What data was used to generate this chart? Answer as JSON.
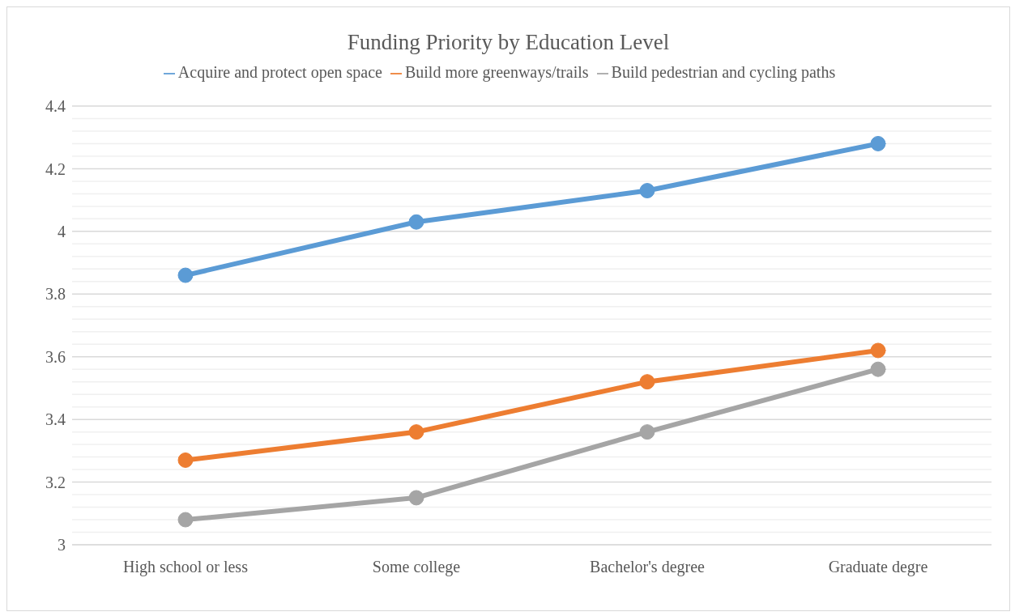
{
  "chart_data": {
    "type": "line",
    "title": "Funding Priority by Education Level",
    "categories": [
      "High school or less",
      "Some college",
      "Bachelor's degree",
      "Graduate degre"
    ],
    "series": [
      {
        "name": "Acquire and protect open space",
        "color": "#5b9bd5",
        "values": [
          3.86,
          4.03,
          4.13,
          4.28
        ]
      },
      {
        "name": "Build more greenways/trails",
        "color": "#ed7d31",
        "values": [
          3.27,
          3.36,
          3.52,
          3.62
        ]
      },
      {
        "name": "Build pedestrian and cycling paths",
        "color": "#a5a5a5",
        "values": [
          3.08,
          3.15,
          3.36,
          3.56
        ]
      }
    ],
    "ylim": [
      3,
      4.4
    ],
    "yticks": [
      3,
      3.2,
      3.4,
      3.6,
      3.8,
      4,
      4.2,
      4.4
    ],
    "grid": "y",
    "legend": "top",
    "marker": "circle",
    "line_style": "solid"
  }
}
